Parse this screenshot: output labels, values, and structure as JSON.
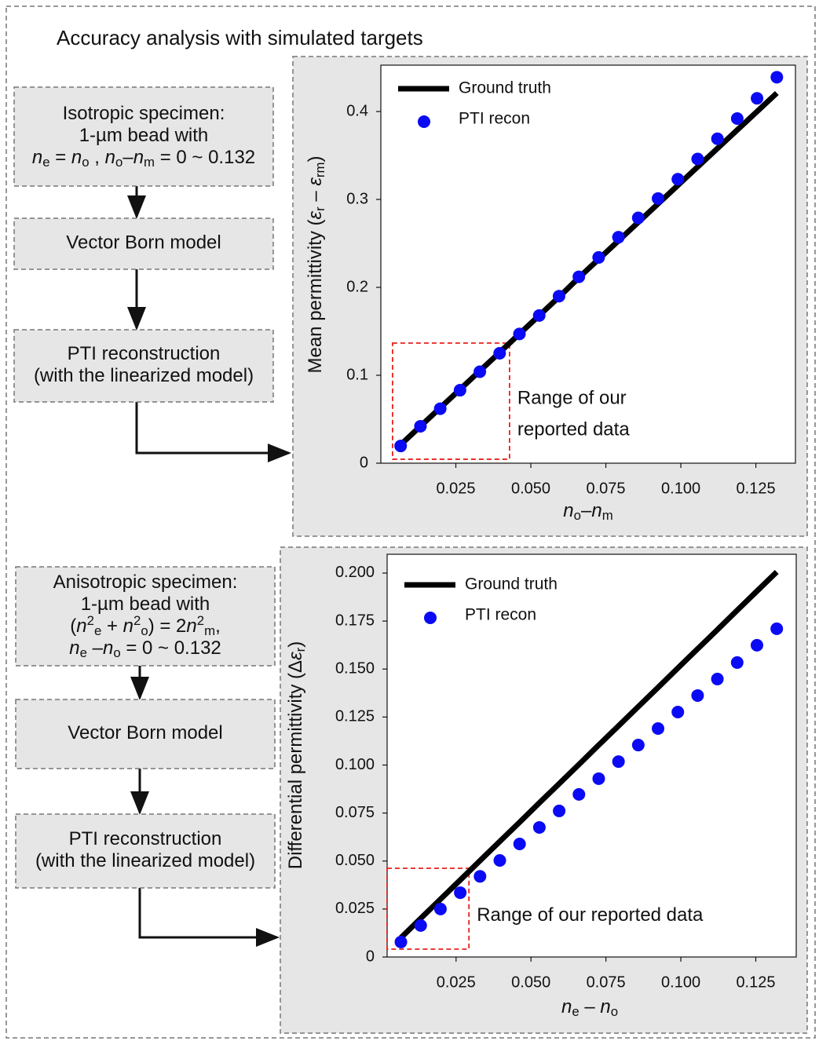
{
  "title": "Accuracy analysis with simulated targets",
  "flows": [
    {
      "boxes": [
        {
          "lines": [
            "Isotropic specimen:",
            "1-µm bead with",
            [
              {
                "it": "n"
              },
              {
                "sub": "e"
              },
              " = ",
              {
                "it": "n"
              },
              {
                "sub": "o"
              },
              " , ",
              {
                "it": "n"
              },
              {
                "sub": "o"
              },
              "–",
              {
                "it": "n"
              },
              {
                "sub": "m"
              },
              " = 0 ~ 0.132"
            ]
          ]
        },
        {
          "lines": [
            "Vector Born model"
          ]
        },
        {
          "lines": [
            "PTI reconstruction",
            "(with the linearized model)"
          ]
        }
      ]
    },
    {
      "boxes": [
        {
          "lines": [
            "Anisotropic specimen:",
            "1-µm bead with",
            [
              "(",
              {
                "it": "n"
              },
              {
                "sup": "2"
              },
              {
                "sub": "e"
              },
              " + ",
              {
                "it": "n"
              },
              {
                "sup": "2"
              },
              {
                "sub": "o"
              },
              ") = 2",
              {
                "it": "n"
              },
              {
                "sup": "2"
              },
              {
                "sub": "m"
              },
              ","
            ],
            [
              {
                "it": "n"
              },
              {
                "sub": "e"
              },
              " –",
              {
                "it": "n"
              },
              {
                "sub": "o"
              },
              " = 0 ~ 0.132"
            ]
          ]
        },
        {
          "lines": [
            "Vector Born model"
          ]
        },
        {
          "lines": [
            "PTI reconstruction",
            "(with the linearized model)"
          ]
        }
      ]
    }
  ],
  "chart_data": [
    {
      "type": "scatter",
      "x_label": [
        {
          "it": "n"
        },
        {
          "sub": "o"
        },
        "–",
        {
          "it": "n"
        },
        {
          "sub": "m"
        }
      ],
      "y_label": [
        "Mean permittivity (",
        {
          "it": "ε"
        },
        {
          "sub": "r"
        },
        " – ",
        {
          "it": "ε"
        },
        {
          "sub": "rm"
        },
        ")"
      ],
      "x": [
        0.0066,
        0.0132,
        0.0198,
        0.0264,
        0.033,
        0.0396,
        0.0462,
        0.0528,
        0.0594,
        0.066,
        0.0726,
        0.0792,
        0.0858,
        0.0924,
        0.099,
        0.1056,
        0.1122,
        0.1188,
        0.1254,
        0.132
      ],
      "series": [
        {
          "name": "Ground truth",
          "mark": "line",
          "color": "#000000",
          "values": [
            0.021,
            0.042,
            0.063,
            0.084,
            0.105,
            0.126,
            0.147,
            0.168,
            0.189,
            0.211,
            0.232,
            0.253,
            0.274,
            0.295,
            0.316,
            0.337,
            0.358,
            0.379,
            0.4,
            0.421
          ]
        },
        {
          "name": "PTI recon",
          "mark": "dot",
          "color": "#0a0af5",
          "values": [
            0.0196,
            0.042,
            0.062,
            0.083,
            0.104,
            0.125,
            0.147,
            0.168,
            0.19,
            0.212,
            0.234,
            0.257,
            0.279,
            0.301,
            0.323,
            0.346,
            0.369,
            0.392,
            0.415,
            0.439
          ]
        }
      ],
      "xlim": [
        0,
        0.1382
      ],
      "ylim": [
        0,
        0.4527
      ],
      "xticks": [
        0.025,
        {
          "value": 0.05,
          "label": "0.050"
        },
        0.075,
        {
          "value": 0.1,
          "label": "0.100"
        },
        0.125
      ],
      "yticks": [
        0,
        0.1,
        0.2,
        0.3,
        0.4
      ],
      "grid": false,
      "legend": "upper-left",
      "region": {
        "x": [
          0.0039,
          0.0429
        ],
        "y": [
          0.0045,
          0.1366
        ],
        "color": "#e8201c",
        "text": [
          "Range of our",
          "reported data"
        ]
      }
    },
    {
      "type": "scatter",
      "x_label": [
        {
          "it": "n"
        },
        {
          "sub": "e"
        },
        " – ",
        {
          "it": "n"
        },
        {
          "sub": "o"
        }
      ],
      "y_label": [
        "Differential permittivity (Δ",
        {
          "it": "ε"
        },
        {
          "sub": "r"
        },
        ")"
      ],
      "x": [
        0.0066,
        0.0132,
        0.0198,
        0.0264,
        0.033,
        0.0396,
        0.0462,
        0.0528,
        0.0594,
        0.066,
        0.0726,
        0.0792,
        0.0858,
        0.0924,
        0.099,
        0.1056,
        0.1122,
        0.1188,
        0.1254,
        0.132
      ],
      "series": [
        {
          "name": "Ground truth",
          "mark": "line",
          "color": "#000000",
          "values": [
            0.01,
            0.0201,
            0.0301,
            0.0401,
            0.0502,
            0.0602,
            0.0702,
            0.0803,
            0.0903,
            0.1003,
            0.1104,
            0.1204,
            0.1304,
            0.1404,
            0.1505,
            0.1605,
            0.1705,
            0.1806,
            0.1906,
            0.2006
          ]
        },
        {
          "name": "PTI recon",
          "mark": "dot",
          "color": "#0a0af5",
          "values": [
            0.0078,
            0.0164,
            0.025,
            0.0335,
            0.042,
            0.0503,
            0.0589,
            0.0675,
            0.0761,
            0.0847,
            0.0929,
            0.1018,
            0.1104,
            0.119,
            0.1276,
            0.1362,
            0.1448,
            0.1534,
            0.1624,
            0.171
          ]
        }
      ],
      "xlim": [
        0.002,
        0.1385
      ],
      "ylim": [
        0,
        0.2098
      ],
      "xticks": [
        0.025,
        {
          "value": 0.05,
          "label": "0.050"
        },
        0.075,
        {
          "value": 0.1,
          "label": "0.100"
        },
        0.125
      ],
      "yticks": [
        0,
        0.025,
        {
          "value": 0.05,
          "label": "0.050"
        },
        0.075,
        {
          "value": 0.1,
          "label": "0.100"
        },
        0.125,
        {
          "value": 0.15,
          "label": "0.150"
        },
        0.175,
        {
          "value": 0.2,
          "label": "0.200"
        }
      ],
      "grid": false,
      "legend": "upper-left",
      "region": {
        "x": [
          0.002,
          0.0293
        ],
        "y": [
          0.0041,
          0.0462
        ],
        "color": "#e8201c",
        "text": [
          "Range of our reported data"
        ]
      }
    }
  ]
}
